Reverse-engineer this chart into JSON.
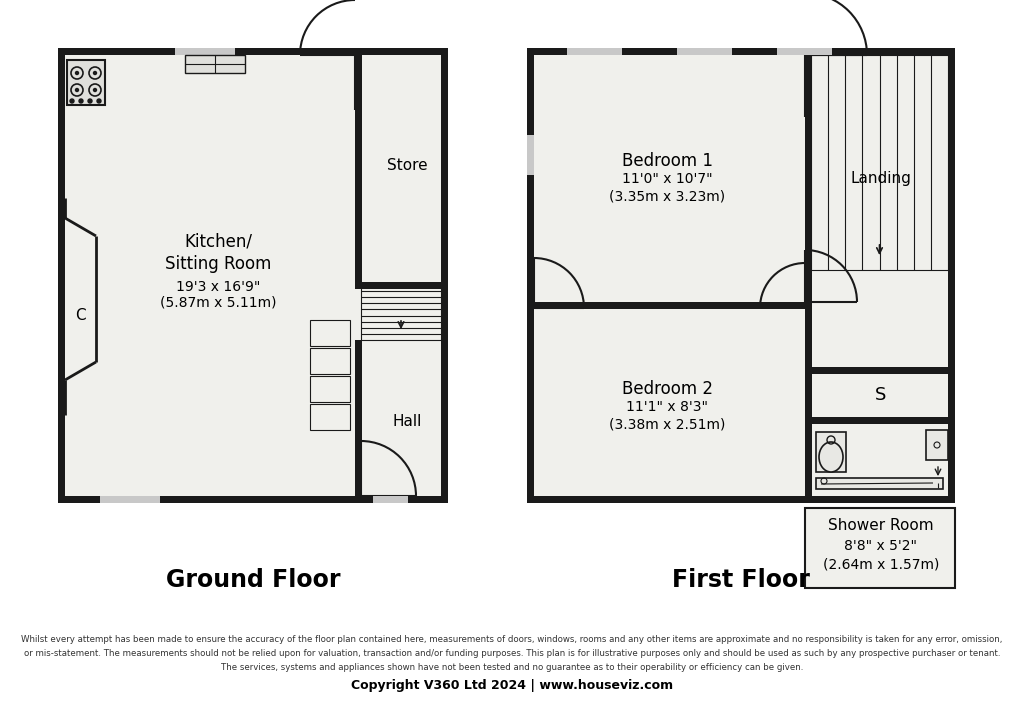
{
  "background_color": "#ffffff",
  "wall_color": "#1a1a1a",
  "wt": 7,
  "room_fill": "#f0f0ec",
  "title_ground": "Ground Floor",
  "title_first": "First Floor",
  "disclaimer_line1": "Whilst every attempt has been made to ensure the accuracy of the floor plan contained here, measurements of doors, windows, rooms and any other items are approximate and no responsibility is taken for any error, omission,",
  "disclaimer_line2": "or mis-statement. The measurements should not be relied upon for valuation, transaction and/or funding purposes. This plan is for illustrative purposes only and should be used as such by any prospective purchaser or tenant.",
  "disclaimer_line3": "The services, systems and appliances shown have not been tested and no guarantee as to their operability or efficiency can be given.",
  "copyright": "Copyright V360 Ltd 2024 | www.houseviz.com",
  "kitchen_label": "Kitchen/\nSitting Room",
  "kitchen_dims": "19'3 x 16'9\"",
  "kitchen_metric": "(5.87m x 5.11m)",
  "store_label": "Store",
  "hall_label": "Hall",
  "bed1_label": "Bedroom 1",
  "bed1_dims": "11'0\" x 10'7\"",
  "bed1_metric": "(3.35m x 3.23m)",
  "bed2_label": "Bedroom 2",
  "bed2_dims": "11'1\" x 8'3\"",
  "bed2_metric": "(3.38m x 2.51m)",
  "landing_label": "Landing",
  "shower_label": "Shower Room",
  "shower_dims": "8'8\" x 5'2\"",
  "shower_metric": "(2.64m x 1.57m)",
  "C_label": "C",
  "S_label": "S"
}
